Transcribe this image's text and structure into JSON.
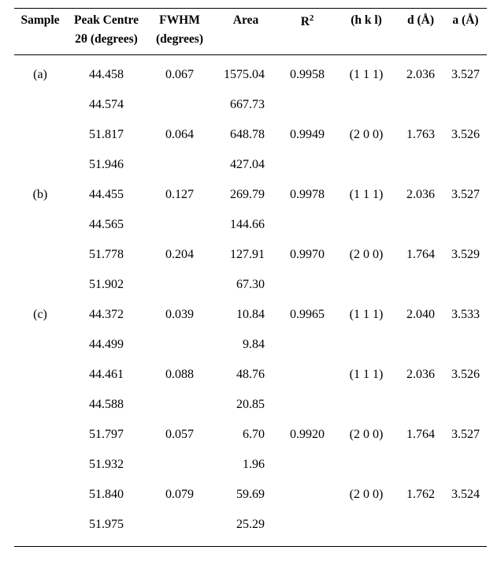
{
  "table": {
    "columns": {
      "sample": {
        "line1": "Sample",
        "line2": ""
      },
      "peakcentre": {
        "line1": "Peak Centre",
        "line2": "2θ (degrees)"
      },
      "fwhm": {
        "line1": "FWHM",
        "line2": "(degrees)"
      },
      "area": {
        "line1": "Area",
        "line2": ""
      },
      "r2": {
        "line1_prefix": "R",
        "line1_sup": "2",
        "line2": ""
      },
      "hkl": {
        "line1": "(h k l)",
        "line2": ""
      },
      "d": {
        "line1": "d (Å)",
        "line2": ""
      },
      "a": {
        "line1": "a (Å)",
        "line2": ""
      }
    },
    "rows": [
      {
        "sample": "(a)",
        "peak": "44.458",
        "fwhm": "0.067",
        "area": "1575.04",
        "r2": "0.9958",
        "hkl": "(1 1 1)",
        "d": "2.036",
        "a": "3.527"
      },
      {
        "sample": "",
        "peak": "44.574",
        "fwhm": "",
        "area": "667.73",
        "r2": "",
        "hkl": "",
        "d": "",
        "a": ""
      },
      {
        "sample": "",
        "peak": "51.817",
        "fwhm": "0.064",
        "area": "648.78",
        "r2": "0.9949",
        "hkl": "(2 0 0)",
        "d": "1.763",
        "a": "3.526"
      },
      {
        "sample": "",
        "peak": "51.946",
        "fwhm": "",
        "area": "427.04",
        "r2": "",
        "hkl": "",
        "d": "",
        "a": ""
      },
      {
        "sample": "(b)",
        "peak": "44.455",
        "fwhm": "0.127",
        "area": "269.79",
        "r2": "0.9978",
        "hkl": "(1 1 1)",
        "d": "2.036",
        "a": "3.527"
      },
      {
        "sample": "",
        "peak": "44.565",
        "fwhm": "",
        "area": "144.66",
        "r2": "",
        "hkl": "",
        "d": "",
        "a": ""
      },
      {
        "sample": "",
        "peak": "51.778",
        "fwhm": "0.204",
        "area": "127.91",
        "r2": "0.9970",
        "hkl": "(2 0 0)",
        "d": "1.764",
        "a": "3.529"
      },
      {
        "sample": "",
        "peak": "51.902",
        "fwhm": "",
        "area": "67.30",
        "r2": "",
        "hkl": "",
        "d": "",
        "a": ""
      },
      {
        "sample": "(c)",
        "peak": "44.372",
        "fwhm": "0.039",
        "area": "10.84",
        "r2": "0.9965",
        "hkl": "(1 1 1)",
        "d": "2.040",
        "a": "3.533"
      },
      {
        "sample": "",
        "peak": "44.499",
        "fwhm": "",
        "area": "9.84",
        "r2": "",
        "hkl": "",
        "d": "",
        "a": ""
      },
      {
        "sample": "",
        "peak": "44.461",
        "fwhm": "0.088",
        "area": "48.76",
        "r2": "",
        "hkl": "(1 1 1)",
        "d": "2.036",
        "a": "3.526"
      },
      {
        "sample": "",
        "peak": "44.588",
        "fwhm": "",
        "area": "20.85",
        "r2": "",
        "hkl": "",
        "d": "",
        "a": ""
      },
      {
        "sample": "",
        "peak": "51.797",
        "fwhm": "0.057",
        "area": "6.70",
        "r2": "0.9920",
        "hkl": "(2 0 0)",
        "d": "1.764",
        "a": "3.527"
      },
      {
        "sample": "",
        "peak": "51.932",
        "fwhm": "",
        "area": "1.96",
        "r2": "",
        "hkl": "",
        "d": "",
        "a": ""
      },
      {
        "sample": "",
        "peak": "51.840",
        "fwhm": "0.079",
        "area": "59.69",
        "r2": "",
        "hkl": "(2 0 0)",
        "d": "1.762",
        "a": "3.524"
      },
      {
        "sample": "",
        "peak": "51.975",
        "fwhm": "",
        "area": "25.29",
        "r2": "",
        "hkl": "",
        "d": "",
        "a": ""
      }
    ]
  }
}
